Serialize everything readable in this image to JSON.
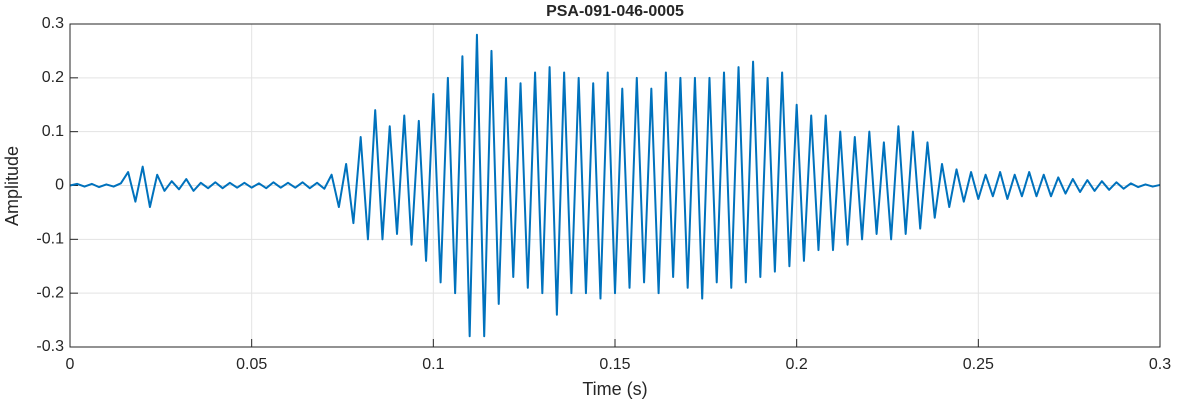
{
  "chart_data": {
    "type": "line",
    "title": "PSA-091-046-0005",
    "xlabel": "Time (s)",
    "ylabel": "Amplitude",
    "color": "#0072bd",
    "grid": true,
    "xlim": [
      0,
      0.3
    ],
    "ylim": [
      -0.3,
      0.3
    ],
    "xticks": [
      0,
      0.05,
      0.1,
      0.15,
      0.2,
      0.25,
      0.3
    ],
    "yticks": [
      -0.3,
      -0.2,
      -0.1,
      0,
      0.1,
      0.2,
      0.3
    ],
    "x": [
      0,
      0.002,
      0.004,
      0.006,
      0.008,
      0.01,
      0.012,
      0.014,
      0.016,
      0.018,
      0.02,
      0.022,
      0.024,
      0.026,
      0.028,
      0.03,
      0.032,
      0.034,
      0.036,
      0.038,
      0.04,
      0.042,
      0.044,
      0.046,
      0.048,
      0.05,
      0.052,
      0.054,
      0.056,
      0.058,
      0.06,
      0.062,
      0.064,
      0.066,
      0.068,
      0.07,
      0.072,
      0.074,
      0.076,
      0.078,
      0.08,
      0.082,
      0.084,
      0.086,
      0.088,
      0.09,
      0.092,
      0.094,
      0.096,
      0.098,
      0.1,
      0.102,
      0.104,
      0.106,
      0.108,
      0.11,
      0.112,
      0.114,
      0.116,
      0.118,
      0.12,
      0.122,
      0.124,
      0.126,
      0.128,
      0.13,
      0.132,
      0.134,
      0.136,
      0.138,
      0.14,
      0.142,
      0.144,
      0.146,
      0.148,
      0.15,
      0.152,
      0.154,
      0.156,
      0.158,
      0.16,
      0.162,
      0.164,
      0.166,
      0.168,
      0.17,
      0.172,
      0.174,
      0.176,
      0.178,
      0.18,
      0.182,
      0.184,
      0.186,
      0.188,
      0.19,
      0.192,
      0.194,
      0.196,
      0.198,
      0.2,
      0.202,
      0.204,
      0.206,
      0.208,
      0.21,
      0.212,
      0.214,
      0.216,
      0.218,
      0.22,
      0.222,
      0.224,
      0.226,
      0.228,
      0.23,
      0.232,
      0.234,
      0.236,
      0.238,
      0.24,
      0.242,
      0.244,
      0.246,
      0.248,
      0.25,
      0.252,
      0.254,
      0.256,
      0.258,
      0.26,
      0.262,
      0.264,
      0.266,
      0.268,
      0.27,
      0.272,
      0.274,
      0.276,
      0.278,
      0.28,
      0.282,
      0.284,
      0.286,
      0.288,
      0.29,
      0.292,
      0.294,
      0.296,
      0.298,
      0.3
    ],
    "values": [
      0,
      0.003,
      -0.002,
      0.003,
      -0.003,
      0.002,
      -0.002,
      0.004,
      0.025,
      -0.03,
      0.035,
      -0.04,
      0.02,
      -0.01,
      0.008,
      -0.007,
      0.012,
      -0.01,
      0.005,
      -0.005,
      0.006,
      -0.005,
      0.005,
      -0.004,
      0.005,
      -0.004,
      0.004,
      -0.005,
      0.006,
      -0.004,
      0.005,
      -0.004,
      0.006,
      -0.005,
      0.005,
      -0.006,
      0.02,
      -0.04,
      0.04,
      -0.07,
      0.09,
      -0.1,
      0.14,
      -0.1,
      0.11,
      -0.09,
      0.13,
      -0.11,
      0.12,
      -0.14,
      0.17,
      -0.18,
      0.2,
      -0.2,
      0.24,
      -0.28,
      0.28,
      -0.28,
      0.25,
      -0.22,
      0.2,
      -0.17,
      0.19,
      -0.19,
      0.21,
      -0.2,
      0.22,
      -0.24,
      0.21,
      -0.2,
      0.2,
      -0.2,
      0.19,
      -0.21,
      0.21,
      -0.2,
      0.18,
      -0.19,
      0.2,
      -0.18,
      0.18,
      -0.2,
      0.21,
      -0.17,
      0.2,
      -0.19,
      0.2,
      -0.21,
      0.2,
      -0.18,
      0.21,
      -0.19,
      0.22,
      -0.18,
      0.23,
      -0.17,
      0.2,
      -0.16,
      0.21,
      -0.15,
      0.15,
      -0.14,
      0.13,
      -0.12,
      0.13,
      -0.12,
      0.1,
      -0.11,
      0.09,
      -0.1,
      0.1,
      -0.09,
      0.08,
      -0.1,
      0.11,
      -0.09,
      0.1,
      -0.08,
      0.08,
      -0.06,
      0.04,
      -0.04,
      0.03,
      -0.03,
      0.025,
      -0.025,
      0.02,
      -0.02,
      0.025,
      -0.025,
      0.02,
      -0.02,
      0.025,
      -0.02,
      0.02,
      -0.02,
      0.015,
      -0.015,
      0.012,
      -0.012,
      0.01,
      -0.01,
      0.008,
      -0.008,
      0.006,
      -0.006,
      0.004,
      -0.003,
      0.002,
      -0.002,
      0.001
    ]
  }
}
